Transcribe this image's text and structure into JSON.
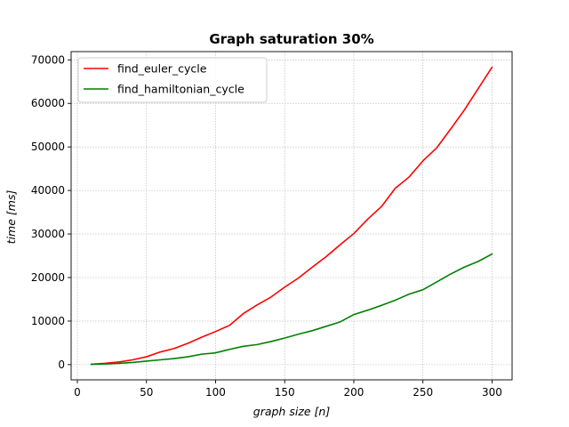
{
  "chart_data": {
    "type": "line",
    "title": "Graph saturation 30%",
    "xlabel": "graph size [n]",
    "ylabel": "time [ms]",
    "xlim": [
      -4.5,
      314.5
    ],
    "ylim": [
      -3500,
      71900
    ],
    "xticks": [
      0,
      50,
      100,
      150,
      200,
      250,
      300
    ],
    "yticks": [
      0,
      10000,
      20000,
      30000,
      40000,
      50000,
      60000,
      70000
    ],
    "xtick_labels": [
      "0",
      "50",
      "100",
      "150",
      "200",
      "250",
      "300"
    ],
    "ytick_labels": [
      "0",
      "10000",
      "20000",
      "30000",
      "40000",
      "50000",
      "60000",
      "70000"
    ],
    "grid": true,
    "legend_position": "upper-left",
    "x": [
      10,
      20,
      30,
      40,
      50,
      60,
      70,
      80,
      90,
      100,
      110,
      120,
      130,
      140,
      150,
      160,
      170,
      180,
      190,
      200,
      210,
      220,
      230,
      240,
      250,
      260,
      270,
      280,
      290,
      300
    ],
    "series": [
      {
        "name": "find_euler_cycle",
        "color": "#ff0000",
        "values": [
          100,
          300,
          600,
          1100,
          1800,
          2900,
          3700,
          4900,
          6300,
          7600,
          9000,
          11700,
          13700,
          15500,
          17800,
          19900,
          22400,
          24800,
          27500,
          30100,
          33400,
          36300,
          40500,
          43100,
          46800,
          49800,
          54100,
          58500,
          63400,
          68300
        ]
      },
      {
        "name": "find_hamiltonian_cycle",
        "color": "#008000",
        "values": [
          50,
          150,
          300,
          500,
          800,
          1100,
          1400,
          1800,
          2400,
          2700,
          3500,
          4200,
          4600,
          5300,
          6100,
          7000,
          7800,
          8800,
          9800,
          11500,
          12500,
          13600,
          14800,
          16200,
          17200,
          19000,
          20800,
          22400,
          23700,
          25400
        ]
      }
    ]
  }
}
